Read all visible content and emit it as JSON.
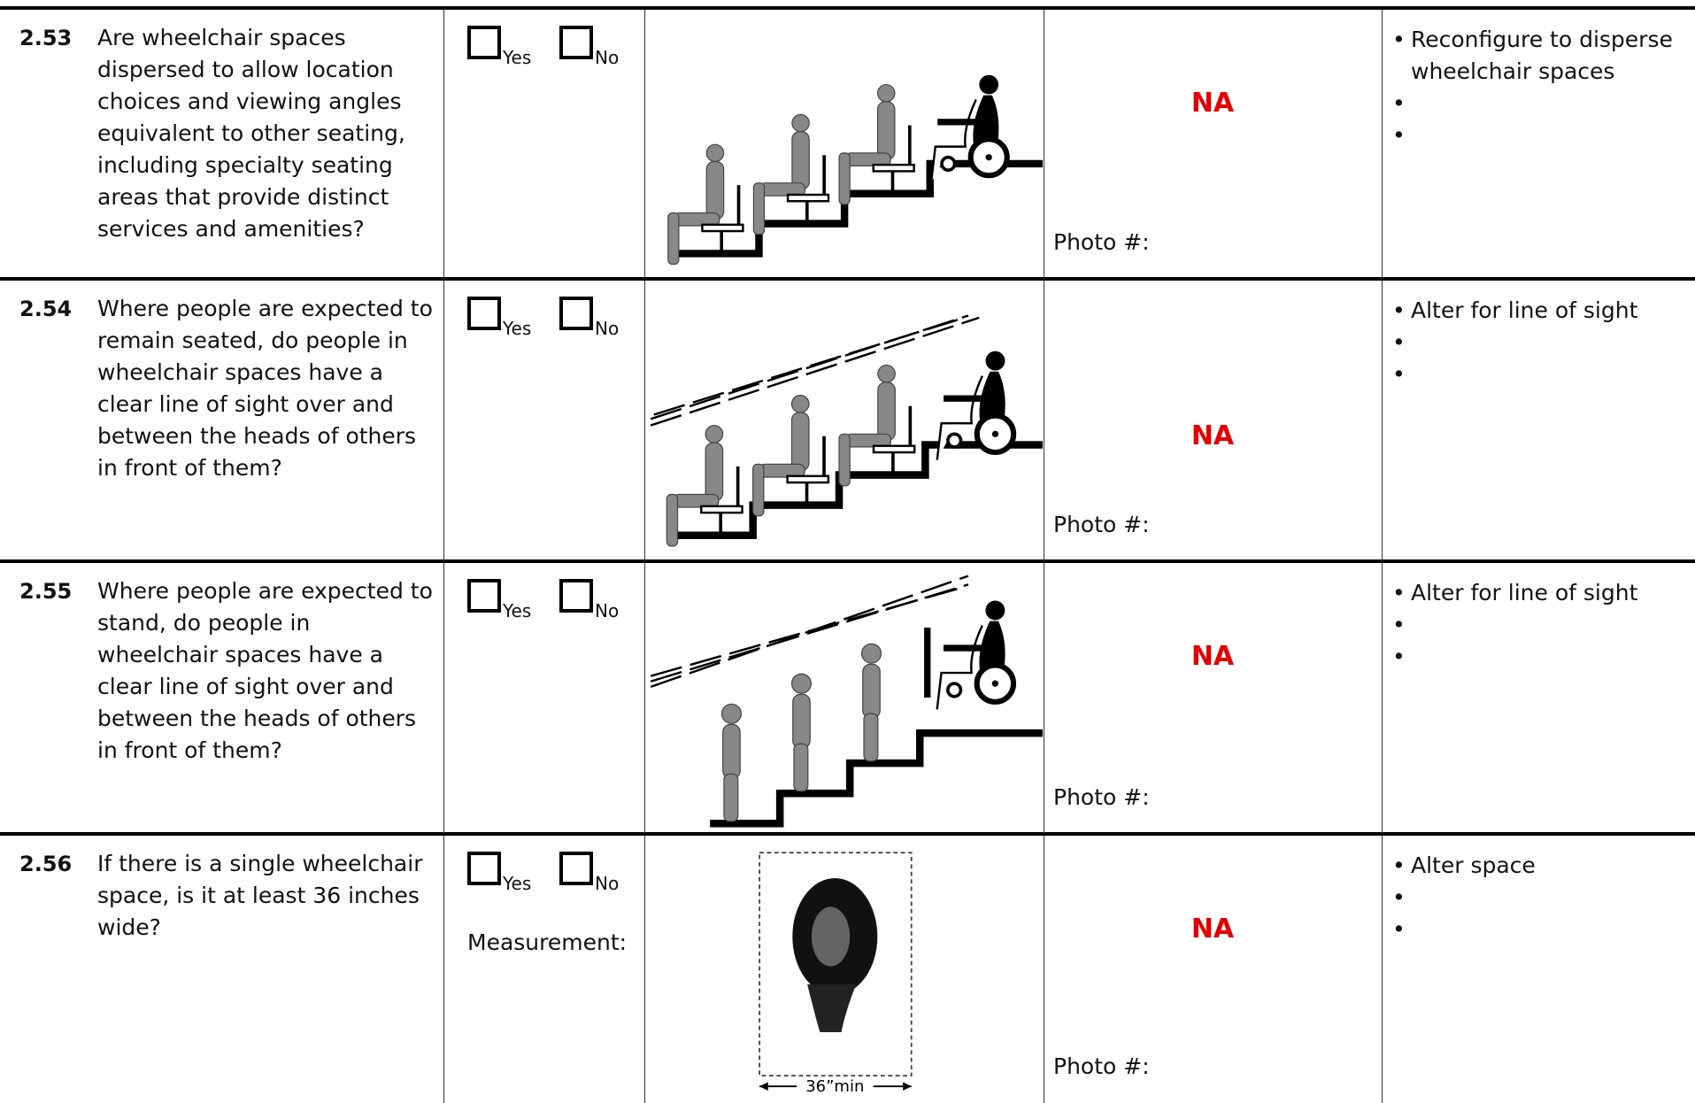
{
  "rows": [
    {
      "id": "2.53",
      "question": "Are wheelchair spaces dispersed to allow location choices and viewing angles equivalent to other seating, including specialty seating areas that provide distinct services and amenities?",
      "options": [
        "Yes",
        "No"
      ],
      "status": "NA",
      "photo_label": "Photo #:",
      "actions": [
        "Reconfigure to disperse wheelchair spaces"
      ]
    },
    {
      "id": "2.54",
      "question": "Where people are expected to remain seated, do people in wheelchair spaces have a clear line of sight over and between the heads of others in front of them?",
      "options": [
        "Yes",
        "No"
      ],
      "status": "NA",
      "photo_label": "Photo #:",
      "actions": [
        "Alter for line of sight"
      ]
    },
    {
      "id": "2.55",
      "question": "Where people are expected to stand, do people in wheelchair spaces have a clear line of sight over and between the heads of others in front of them?",
      "options": [
        "Yes",
        "No"
      ],
      "status": "NA",
      "photo_label": "Photo #:",
      "actions": [
        "Alter for line of sight"
      ]
    },
    {
      "id": "2.56",
      "question": "If there is a single wheelchair space, is it at least 36 inches wide?",
      "options": [
        "Yes",
        "No"
      ],
      "measurement_label": "Measurement:",
      "figure_label": "36”min",
      "status": "NA",
      "photo_label": "Photo #:",
      "actions": [
        "Alter space"
      ]
    }
  ]
}
